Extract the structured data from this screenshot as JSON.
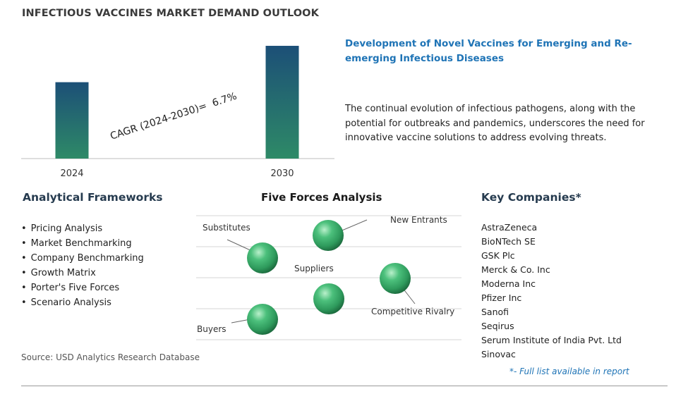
{
  "page": {
    "title": "INFECTIOUS VACCINES MARKET DEMAND OUTLOOK",
    "source": "Source: USD Analytics Research Database"
  },
  "chart_data": {
    "type": "bar",
    "categories": [
      "2024",
      "2030"
    ],
    "values": [
      1,
      1.476
    ],
    "value_note": "no value axis printed; heights relative to 2024",
    "annotation": "CAGR (2024-2030)=  6.7%",
    "ylim": [
      0,
      1.55
    ],
    "grid": false,
    "bar_gradient": [
      "#1c4f77",
      "#2e8a67"
    ]
  },
  "highlight": {
    "title": "Development of Novel Vaccines for Emerging and Re-emerging Infectious Diseases",
    "body": "The continual evolution of infectious pathogens, along with the potential for outbreaks and pandemics, underscores the need for innovative vaccine solutions to address evolving threats."
  },
  "frameworks": {
    "title": "Analytical Frameworks",
    "items": [
      "Pricing Analysis",
      "Market Benchmarking",
      "Company Benchmarking",
      "Growth Matrix",
      "Porter's Five Forces",
      "Scenario Analysis"
    ]
  },
  "five_forces": {
    "title": "Five Forces Analysis",
    "labels": {
      "substitutes": "Substitutes",
      "new_entrants": "New Entrants",
      "suppliers": "Suppliers",
      "competitive_rivalry": "Competitive Rivalry",
      "buyers": "Buyers"
    },
    "sphere_color": "#2e9a5c"
  },
  "companies": {
    "title": "Key Companies*",
    "items": [
      "AstraZeneca",
      "BioNTech SE",
      "GSK Plc",
      "Merck & Co. Inc",
      "Moderna Inc",
      "Pfizer Inc",
      "Sanofi",
      "Seqirus",
      "Serum Institute of India Pvt. Ltd",
      "Sinovac"
    ],
    "note": "*- Full list available in report"
  }
}
